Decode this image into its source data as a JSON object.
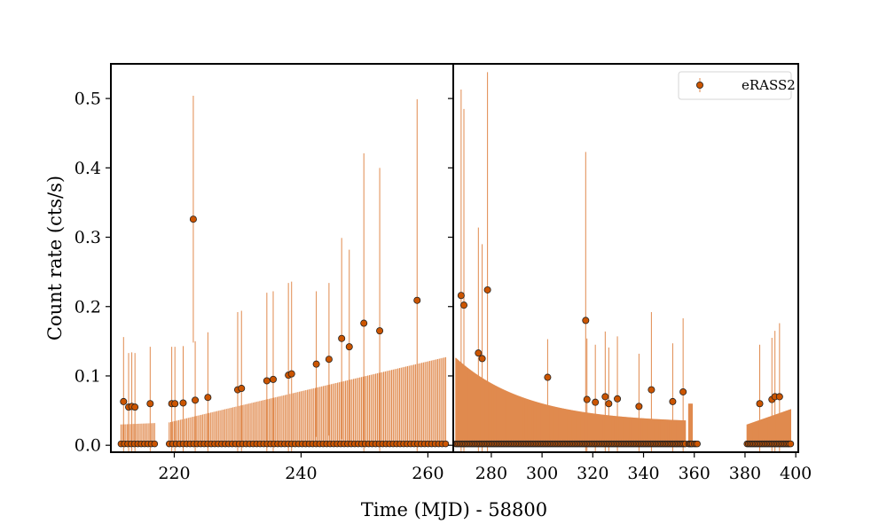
{
  "chart_data": {
    "type": "scatter",
    "xlabel": "Time (MJD) - 58800",
    "ylabel": "Count rate (cts/s)",
    "ylim": [
      -0.01,
      0.55
    ],
    "yticks": [
      0.0,
      0.1,
      0.2,
      0.3,
      0.4,
      0.5
    ],
    "ytick_labels": [
      "0.0",
      "0.1",
      "0.2",
      "0.3",
      "0.4",
      "0.5"
    ],
    "legend_position": "top-right",
    "colors": {
      "marker": "#cc5500",
      "errorbar": "#e08a4e",
      "marker_edge": "#222222",
      "frame": "#000000"
    },
    "panels": [
      {
        "xlim": [
          210,
          264
        ],
        "xticks": [
          220,
          240,
          260
        ],
        "xtick_labels": [
          "220",
          "240",
          "260"
        ],
        "detections": [
          {
            "x": 212.0,
            "y": 0.063,
            "err": 0.093
          },
          {
            "x": 212.8,
            "y": 0.055,
            "err": 0.078
          },
          {
            "x": 213.3,
            "y": 0.056,
            "err": 0.078
          },
          {
            "x": 213.8,
            "y": 0.055,
            "err": 0.078
          },
          {
            "x": 216.2,
            "y": 0.06,
            "err": 0.082
          },
          {
            "x": 219.6,
            "y": 0.06,
            "err": 0.082
          },
          {
            "x": 220.1,
            "y": 0.06,
            "err": 0.082
          },
          {
            "x": 221.4,
            "y": 0.061,
            "err": 0.082
          },
          {
            "x": 223.0,
            "y": 0.326,
            "err": 0.178
          },
          {
            "x": 223.3,
            "y": 0.065,
            "err": 0.085
          },
          {
            "x": 225.3,
            "y": 0.069,
            "err": 0.094
          },
          {
            "x": 230.0,
            "y": 0.08,
            "err": 0.112
          },
          {
            "x": 230.6,
            "y": 0.082,
            "err": 0.112
          },
          {
            "x": 234.6,
            "y": 0.093,
            "err": 0.127
          },
          {
            "x": 235.6,
            "y": 0.095,
            "err": 0.127
          },
          {
            "x": 238.0,
            "y": 0.101,
            "err": 0.133
          },
          {
            "x": 238.5,
            "y": 0.103,
            "err": 0.133
          },
          {
            "x": 242.4,
            "y": 0.117,
            "err": 0.105
          },
          {
            "x": 244.4,
            "y": 0.124,
            "err": 0.11
          },
          {
            "x": 246.4,
            "y": 0.154,
            "err": 0.145
          },
          {
            "x": 247.6,
            "y": 0.142,
            "err": 0.14
          },
          {
            "x": 249.9,
            "y": 0.176,
            "err": 0.245
          },
          {
            "x": 252.4,
            "y": 0.165,
            "err": 0.235
          },
          {
            "x": 258.3,
            "y": 0.209,
            "err": 0.29
          }
        ],
        "upper_limit_segments": [
          {
            "x_start": 211.6,
            "x_end": 216.9,
            "ul_start": 0.03,
            "ul_end": 0.032
          },
          {
            "x_start": 219.2,
            "x_end": 262.8,
            "ul_start": 0.033,
            "ul_end": 0.127
          }
        ]
      },
      {
        "xlim": [
          265,
          401
        ],
        "xticks": [
          280,
          300,
          320,
          340,
          360,
          380,
          400
        ],
        "xtick_labels": [
          "280",
          "300",
          "320",
          "340",
          "360",
          "380",
          "400"
        ],
        "detections": [
          {
            "x": 268.1,
            "y": 0.216,
            "err": 0.297
          },
          {
            "x": 269.2,
            "y": 0.202,
            "err": 0.283
          },
          {
            "x": 274.9,
            "y": 0.133,
            "err": 0.181
          },
          {
            "x": 276.4,
            "y": 0.125,
            "err": 0.165
          },
          {
            "x": 278.5,
            "y": 0.224,
            "err": 0.314
          },
          {
            "x": 302.2,
            "y": 0.098,
            "err": 0.055
          },
          {
            "x": 317.2,
            "y": 0.18,
            "err": 0.243
          },
          {
            "x": 317.7,
            "y": 0.066,
            "err": 0.088
          },
          {
            "x": 321.0,
            "y": 0.062,
            "err": 0.083
          },
          {
            "x": 324.9,
            "y": 0.07,
            "err": 0.094
          },
          {
            "x": 326.3,
            "y": 0.06,
            "err": 0.081
          },
          {
            "x": 329.7,
            "y": 0.067,
            "err": 0.09
          },
          {
            "x": 338.2,
            "y": 0.056,
            "err": 0.076
          },
          {
            "x": 343.1,
            "y": 0.08,
            "err": 0.112
          },
          {
            "x": 351.5,
            "y": 0.063,
            "err": 0.084
          },
          {
            "x": 355.6,
            "y": 0.077,
            "err": 0.106
          },
          {
            "x": 385.8,
            "y": 0.06,
            "err": 0.085
          },
          {
            "x": 390.6,
            "y": 0.066,
            "err": 0.089
          },
          {
            "x": 391.8,
            "y": 0.07,
            "err": 0.095
          },
          {
            "x": 393.6,
            "y": 0.07,
            "err": 0.106
          }
        ],
        "upper_limit_segments": [
          {
            "x_start": 266.0,
            "x_end": 356.5,
            "ul_start": 0.126,
            "ul_end": 0.032,
            "decay": "exponential"
          },
          {
            "x_start": 357.8,
            "x_end": 359.2,
            "ul_start": 0.06,
            "ul_end": 0.06
          },
          {
            "x_start": 360.0,
            "x_end": 361.2,
            "ul_start": 0.002,
            "ul_end": 0.002
          },
          {
            "x_start": 380.8,
            "x_end": 398.0,
            "ul_start": 0.03,
            "ul_end": 0.052
          }
        ]
      }
    ],
    "series": [
      {
        "name": "eRASS2",
        "kind": "detections_with_errorbars"
      }
    ],
    "legend": [
      {
        "label": "eRASS2",
        "marker": "circle-with-errorbar"
      }
    ]
  }
}
